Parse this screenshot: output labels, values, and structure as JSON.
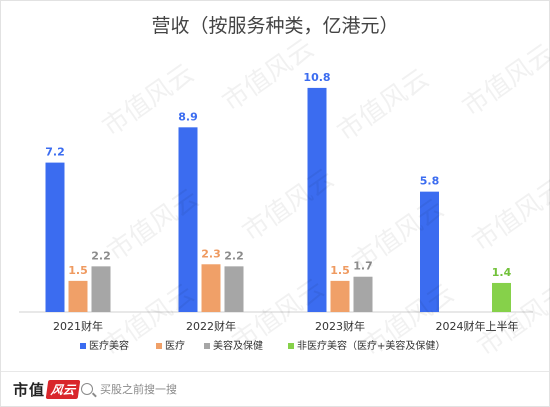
{
  "chart_data": {
    "type": "bar",
    "title": "营收（按服务种类，亿港元）",
    "categories": [
      "2021财年",
      "2022财年",
      "2023财年",
      "2024财年上半年"
    ],
    "series": [
      {
        "name": "医疗美容",
        "color": "#3b6cf0",
        "values": [
          7.2,
          8.9,
          10.8,
          5.8
        ]
      },
      {
        "name": "医疗",
        "color": "#f0a068",
        "values": [
          1.5,
          2.3,
          1.5,
          null
        ]
      },
      {
        "name": "美容及保健",
        "color": "#a6a6a6",
        "values": [
          2.2,
          2.2,
          1.7,
          null
        ]
      },
      {
        "name": "非医疗美容（医疗+美容及保健）",
        "color": "#86d14a",
        "values": [
          null,
          null,
          null,
          1.4
        ]
      }
    ],
    "label_colors": {
      "医疗美容": "#3b6cf0",
      "医疗": "#ef9a60",
      "美容及保健": "#8c8c8c",
      "非医疗美容（医疗+美容及保健）": "#72c23a"
    },
    "ylim": [
      0,
      12
    ],
    "grid": false,
    "legend": "bottom"
  },
  "watermark_text": "市值风云",
  "footer": {
    "logo_text": "市值",
    "logo_mark": "风云",
    "search_placeholder": "买股之前搜一搜"
  }
}
